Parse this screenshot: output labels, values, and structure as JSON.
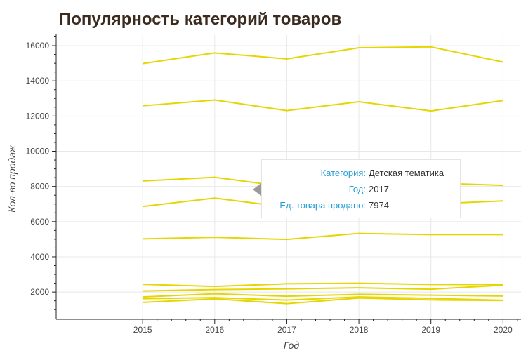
{
  "chart_data": {
    "type": "line",
    "title": "Популярность категорий товаров",
    "xlabel": "Год",
    "ylabel": "Кол-во продаж",
    "x": [
      2015,
      2016,
      2017,
      2018,
      2019,
      2020
    ],
    "xlim": [
      2013.8,
      2020.25
    ],
    "ylim": [
      450,
      16600
    ],
    "xticks": [
      2015,
      2016,
      2017,
      2018,
      2019,
      2020
    ],
    "yticks": [
      2000,
      4000,
      6000,
      8000,
      10000,
      12000,
      14000,
      16000
    ],
    "grid": true,
    "line_color": "#e6d600",
    "series": [
      {
        "values": [
          14980,
          15590,
          15250,
          15880,
          15930,
          15070
        ]
      },
      {
        "values": [
          12580,
          12910,
          12310,
          12810,
          12290,
          12880
        ]
      },
      {
        "values": [
          8310,
          8520,
          7974,
          8700,
          8200,
          8060
        ]
      },
      {
        "values": [
          6860,
          7340,
          6820,
          7300,
          7000,
          7180
        ]
      },
      {
        "values": [
          5020,
          5110,
          4990,
          5330,
          5260,
          5260
        ]
      },
      {
        "values": [
          2440,
          2320,
          2470,
          2500,
          2430,
          2420
        ]
      },
      {
        "values": [
          2060,
          2140,
          2180,
          2240,
          2160,
          2390
        ]
      },
      {
        "values": [
          1720,
          1900,
          1760,
          1870,
          1820,
          1770
        ]
      },
      {
        "values": [
          1620,
          1680,
          1540,
          1720,
          1640,
          1530
        ]
      },
      {
        "values": [
          1410,
          1610,
          1340,
          1660,
          1550,
          1520
        ]
      }
    ]
  },
  "tooltip": {
    "rows": [
      {
        "key": "Категория:",
        "value": "Детская тематика"
      },
      {
        "key": "Год:",
        "value": "2017"
      },
      {
        "key": "Ед. товара продано:",
        "value": "7974"
      }
    ]
  }
}
